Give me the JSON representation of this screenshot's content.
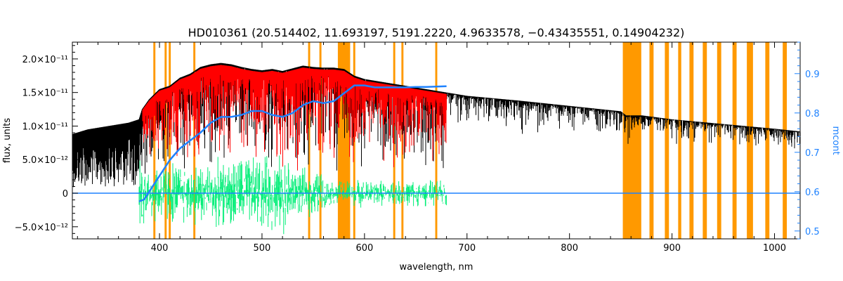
{
  "chart_data": {
    "type": "line",
    "title": "HD010361   (20.514402, 11.693197, 5191.2220, 4.9633578, −0.43435551, 0.14904232)",
    "xlabel": "wavelength, nm",
    "ylabel": "flux, units",
    "y2label": "mcont",
    "xlim": [
      315,
      1025
    ],
    "ylim": [
      -6.8e-12,
      2.25e-11
    ],
    "y2lim": [
      0.48,
      0.98
    ],
    "grid": false,
    "legend": "none",
    "x_ticks": [
      400,
      500,
      600,
      700,
      800,
      900,
      1000
    ],
    "x_tick_labels": [
      "400",
      "500",
      "600",
      "700",
      "800",
      "900",
      "1000"
    ],
    "y_ticks": [
      -5e-12,
      0,
      5e-12,
      1e-11,
      1.5e-11,
      2e-11
    ],
    "y_tick_labels": [
      "−5.0×10⁻¹²",
      "0",
      "5.0×10⁻¹²",
      "1.0×10⁻¹¹",
      "1.5×10⁻¹¹",
      "2.0×10⁻¹¹"
    ],
    "y2_ticks": [
      0.5,
      0.6,
      0.7,
      0.8,
      0.9
    ],
    "y2_tick_labels": [
      "0.5",
      "0.6",
      "0.7",
      "0.8",
      "0.9"
    ],
    "masks": [
      {
        "start": 394,
        "end": 396
      },
      {
        "start": 405,
        "end": 407
      },
      {
        "start": 409,
        "end": 411
      },
      {
        "start": 433,
        "end": 435
      },
      {
        "start": 545,
        "end": 547
      },
      {
        "start": 556,
        "end": 558
      },
      {
        "start": 574,
        "end": 586
      },
      {
        "start": 589,
        "end": 591
      },
      {
        "start": 628,
        "end": 630
      },
      {
        "start": 636,
        "end": 638
      },
      {
        "start": 669,
        "end": 671
      },
      {
        "start": 852,
        "end": 870
      },
      {
        "start": 878,
        "end": 882
      },
      {
        "start": 893,
        "end": 897
      },
      {
        "start": 906,
        "end": 909
      },
      {
        "start": 917,
        "end": 921
      },
      {
        "start": 930,
        "end": 934
      },
      {
        "start": 944,
        "end": 948
      },
      {
        "start": 959,
        "end": 963
      },
      {
        "start": 973,
        "end": 979
      },
      {
        "start": 991,
        "end": 995
      },
      {
        "start": 1008,
        "end": 1012
      }
    ],
    "series": [
      {
        "role": "observed",
        "color": "#000000",
        "x": [
          315,
          330,
          350,
          370,
          380,
          383,
          390,
          400,
          410,
          420,
          430,
          440,
          450,
          460,
          470,
          480,
          490,
          500,
          510,
          520,
          530,
          540,
          550,
          560,
          570,
          580,
          590,
          600,
          620,
          640,
          660,
          680,
          700,
          750,
          800,
          850,
          855,
          870,
          900,
          950,
          1000,
          1025
        ],
        "y": [
          8.8e-12,
          9.5e-12,
          1e-11,
          1.05e-11,
          1.1e-11,
          1.25e-11,
          1.4e-11,
          1.55e-11,
          1.6e-11,
          1.72e-11,
          1.78e-11,
          1.88e-11,
          1.92e-11,
          1.94e-11,
          1.92e-11,
          1.88e-11,
          1.85e-11,
          1.83e-11,
          1.85e-11,
          1.82e-11,
          1.86e-11,
          1.9e-11,
          1.88e-11,
          1.87e-11,
          1.87e-11,
          1.85e-11,
          1.75e-11,
          1.7e-11,
          1.65e-11,
          1.6e-11,
          1.55e-11,
          1.5e-11,
          1.45e-11,
          1.38e-11,
          1.3e-11,
          1.22e-11,
          1.16e-11,
          1.16e-11,
          1.1e-11,
          1.03e-11,
          9.6e-12,
          9.2e-12
        ]
      },
      {
        "role": "model",
        "color": "#ff0000",
        "x": [
          383,
          390,
          400,
          410,
          420,
          430,
          440,
          450,
          460,
          470,
          480,
          490,
          500,
          510,
          520,
          530,
          540,
          550,
          560,
          570,
          580,
          590,
          600,
          620,
          640,
          660,
          680
        ],
        "y": [
          1.25e-11,
          1.4e-11,
          1.55e-11,
          1.6e-11,
          1.72e-11,
          1.78e-11,
          1.88e-11,
          1.92e-11,
          1.94e-11,
          1.92e-11,
          1.88e-11,
          1.85e-11,
          1.83e-11,
          1.85e-11,
          1.82e-11,
          1.86e-11,
          1.9e-11,
          1.88e-11,
          1.87e-11,
          1.87e-11,
          1.85e-11,
          1.75e-11,
          1.7e-11,
          1.65e-11,
          1.6e-11,
          1.55e-11,
          1.5e-11
        ]
      },
      {
        "role": "residuals",
        "color": "#00ee77",
        "x": [
          380,
          680
        ],
        "y": [
          0,
          0
        ]
      },
      {
        "role": "zero-line",
        "color": "#1e82ff",
        "x": [
          315,
          1025
        ],
        "y": [
          0,
          0
        ]
      },
      {
        "role": "mcont",
        "axis": "right",
        "color": "#1e82ff",
        "x": [
          380,
          385,
          390,
          400,
          410,
          420,
          430,
          440,
          450,
          460,
          470,
          480,
          490,
          500,
          510,
          520,
          530,
          540,
          550,
          560,
          570,
          580,
          590,
          600,
          610,
          620,
          630,
          640,
          650,
          660,
          670,
          680
        ],
        "y": [
          0.575,
          0.58,
          0.6,
          0.64,
          0.68,
          0.71,
          0.73,
          0.75,
          0.775,
          0.79,
          0.79,
          0.795,
          0.805,
          0.805,
          0.795,
          0.79,
          0.8,
          0.82,
          0.83,
          0.825,
          0.83,
          0.85,
          0.87,
          0.87,
          0.865,
          0.865,
          0.865,
          0.865,
          0.866,
          0.866,
          0.867,
          0.868
        ]
      }
    ]
  }
}
